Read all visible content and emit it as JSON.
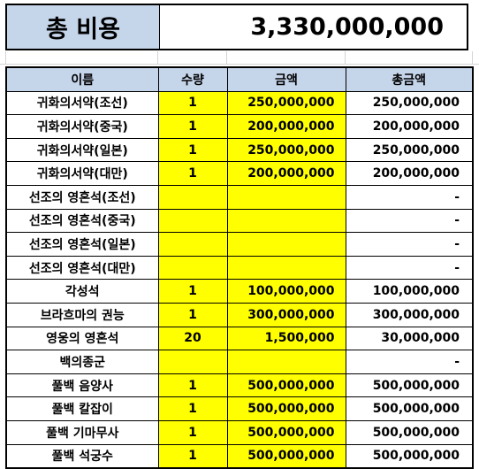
{
  "summary": {
    "label": "총 비용",
    "value": "3,330,000,000"
  },
  "table": {
    "headers": [
      "이름",
      "수량",
      "금액",
      "총금액"
    ],
    "rows": [
      {
        "name": "귀화의서약(조선)",
        "qty": "1",
        "price": "250,000,000",
        "total": "250,000,000"
      },
      {
        "name": "귀화의서약(중국)",
        "qty": "1",
        "price": "200,000,000",
        "total": "200,000,000"
      },
      {
        "name": "귀화의서약(일본)",
        "qty": "1",
        "price": "250,000,000",
        "total": "250,000,000"
      },
      {
        "name": "귀화의서약(대만)",
        "qty": "1",
        "price": "200,000,000",
        "total": "200,000,000"
      },
      {
        "name": "선조의 영혼석(조선)",
        "qty": "",
        "price": "",
        "total": "-"
      },
      {
        "name": "선조의 영혼석(중국)",
        "qty": "",
        "price": "",
        "total": "-"
      },
      {
        "name": "선조의 영혼석(일본)",
        "qty": "",
        "price": "",
        "total": "-"
      },
      {
        "name": "선조의 영혼석(대만)",
        "qty": "",
        "price": "",
        "total": "-"
      },
      {
        "name": "각성석",
        "qty": "1",
        "price": "100,000,000",
        "total": "100,000,000"
      },
      {
        "name": "브라흐마의 권능",
        "qty": "1",
        "price": "300,000,000",
        "total": "300,000,000"
      },
      {
        "name": "영웅의 영혼석",
        "qty": "20",
        "price": "1,500,000",
        "total": "30,000,000"
      },
      {
        "name": "백의종군",
        "qty": "",
        "price": "",
        "total": "-"
      },
      {
        "name": "풀백 음양사",
        "qty": "1",
        "price": "500,000,000",
        "total": "500,000,000"
      },
      {
        "name": "풀백 칼잡이",
        "qty": "1",
        "price": "500,000,000",
        "total": "500,000,000"
      },
      {
        "name": "풀백 기마무사",
        "qty": "1",
        "price": "500,000,000",
        "total": "500,000,000"
      },
      {
        "name": "풀백 석궁수",
        "qty": "1",
        "price": "500,000,000",
        "total": "500,000,000"
      }
    ]
  },
  "colors": {
    "header_bg": "#c5d5ea",
    "input_bg": "#ffff00"
  }
}
